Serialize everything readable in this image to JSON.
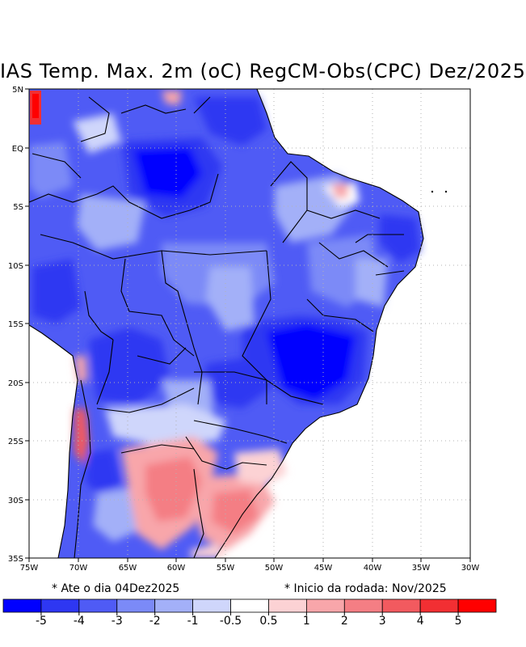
{
  "title": "IAS Temp. Max. 2m (oC) RegCM-Obs(CPC) Dez/2025",
  "lat_labels": [
    "5N",
    "EQ",
    "5S",
    "10S",
    "15S",
    "20S",
    "25S",
    "30S",
    "35S"
  ],
  "lon_labels": [
    "75W",
    "70W",
    "65W",
    "60W",
    "55W",
    "50W",
    "45W",
    "40W",
    "35W",
    "30W"
  ],
  "footer": {
    "left": "* Ate o dia 04Dez2025",
    "right": "* Inicio da rodada: Nov/2025"
  },
  "colorbar": {
    "labels": [
      "-5",
      "-4",
      "-3",
      "-2",
      "-1",
      "-0.5",
      "0.5",
      "1",
      "2",
      "3",
      "4",
      "5"
    ],
    "colors": [
      "#0000ff",
      "#2e37f2",
      "#4f5bf5",
      "#7b8af7",
      "#a3b0f8",
      "#cfd6fb",
      "#ffffff",
      "#fcd2d4",
      "#f8a6aa",
      "#f47e84",
      "#f25a5f",
      "#f22f33",
      "#ff0000"
    ]
  },
  "colors": {
    "grid": "#b3b3b3",
    "ocean": "#ffffff",
    "border": "#000000"
  }
}
